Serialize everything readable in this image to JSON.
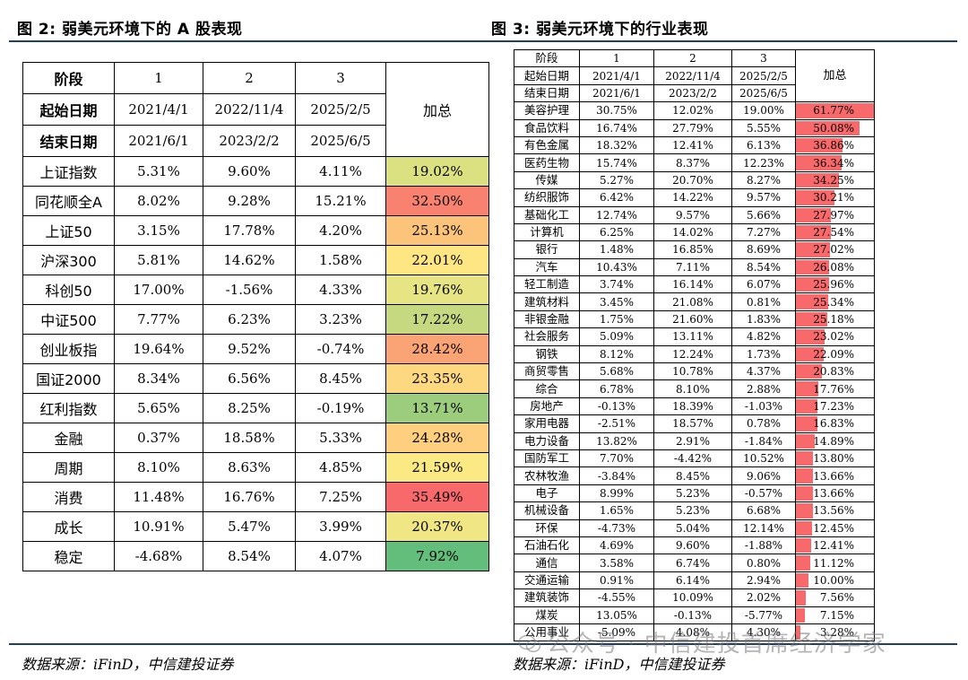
{
  "left": {
    "title": "图 2: 弱美元环境下的 A 股表现",
    "source": "数据来源：iFinD，中信建投证券",
    "header": {
      "stage_label": "阶段",
      "stages": [
        "1",
        "2",
        "3"
      ],
      "start_label": "起始日期",
      "starts": [
        "2021/4/1",
        "2022/11/4",
        "2025/2/5"
      ],
      "end_label": "结束日期",
      "ends": [
        "2021/6/1",
        "2023/2/2",
        "2025/6/5"
      ],
      "total_label": "加总"
    },
    "rows": [
      {
        "name": "上证指数",
        "v": [
          "5.31%",
          "9.60%",
          "4.11%"
        ],
        "total": "19.02%",
        "color": "#dbe081"
      },
      {
        "name": "同花顺全A",
        "v": [
          "8.02%",
          "9.28%",
          "15.21%"
        ],
        "total": "32.50%",
        "color": "#f8826f"
      },
      {
        "name": "上证50",
        "v": [
          "3.15%",
          "17.78%",
          "4.20%"
        ],
        "total": "25.13%",
        "color": "#fcc47b"
      },
      {
        "name": "沪深300",
        "v": [
          "5.81%",
          "14.62%",
          "1.58%"
        ],
        "total": "22.01%",
        "color": "#fee683"
      },
      {
        "name": "科创50",
        "v": [
          "17.00%",
          "-1.56%",
          "4.33%"
        ],
        "total": "19.76%",
        "color": "#e6e483"
      },
      {
        "name": "中证500",
        "v": [
          "7.77%",
          "6.23%",
          "3.23%"
        ],
        "total": "17.22%",
        "color": "#c6d980"
      },
      {
        "name": "创业板指",
        "v": [
          "19.64%",
          "9.52%",
          "-0.74%"
        ],
        "total": "28.42%",
        "color": "#faa375"
      },
      {
        "name": "国证2000",
        "v": [
          "8.34%",
          "6.56%",
          "8.45%"
        ],
        "total": "23.35%",
        "color": "#fdd880"
      },
      {
        "name": "红利指数",
        "v": [
          "5.65%",
          "8.25%",
          "-0.19%"
        ],
        "total": "13.71%",
        "color": "#9ccd7d"
      },
      {
        "name": "金融",
        "v": [
          "0.37%",
          "18.58%",
          "5.33%"
        ],
        "total": "24.28%",
        "color": "#fdcf7e"
      },
      {
        "name": "周期",
        "v": [
          "8.10%",
          "8.63%",
          "4.85%"
        ],
        "total": "21.59%",
        "color": "#fbe983"
      },
      {
        "name": "消费",
        "v": [
          "11.48%",
          "16.76%",
          "7.25%"
        ],
        "total": "35.49%",
        "color": "#f8696b"
      },
      {
        "name": "成长",
        "v": [
          "10.91%",
          "5.47%",
          "3.99%"
        ],
        "total": "20.37%",
        "color": "#f0e683"
      },
      {
        "name": "稳定",
        "v": [
          "-4.68%",
          "8.54%",
          "4.07%"
        ],
        "total": "7.92%",
        "color": "#63be7b"
      }
    ]
  },
  "right": {
    "title": "图 3: 弱美元环境下的行业表现",
    "source": "数据来源：iFinD，中信建投证券",
    "header": {
      "stage_label": "阶段",
      "stages": [
        "1",
        "2",
        "3"
      ],
      "start_label": "起始日期",
      "starts": [
        "2021/4/1",
        "2022/11/4",
        "2025/2/5"
      ],
      "end_label": "结束日期",
      "ends": [
        "2021/6/1",
        "2023/2/2",
        "2025/6/5"
      ],
      "total_label": "加总"
    },
    "bar_color": "#f8696b",
    "rows": [
      {
        "name": "美容护理",
        "v": [
          "30.75%",
          "12.02%",
          "19.00%"
        ],
        "total": "61.77%",
        "pct": 61.77
      },
      {
        "name": "食品饮料",
        "v": [
          "16.74%",
          "27.79%",
          "5.55%"
        ],
        "total": "50.08%",
        "pct": 50.08
      },
      {
        "name": "有色金属",
        "v": [
          "18.32%",
          "12.41%",
          "6.13%"
        ],
        "total": "36.86%",
        "pct": 36.86
      },
      {
        "name": "医药生物",
        "v": [
          "15.74%",
          "8.37%",
          "12.23%"
        ],
        "total": "36.34%",
        "pct": 36.34
      },
      {
        "name": "传媒",
        "v": [
          "5.27%",
          "20.70%",
          "8.27%"
        ],
        "total": "34.25%",
        "pct": 34.25
      },
      {
        "name": "纺织服饰",
        "v": [
          "6.42%",
          "14.22%",
          "9.57%"
        ],
        "total": "30.21%",
        "pct": 30.21
      },
      {
        "name": "基础化工",
        "v": [
          "12.74%",
          "9.57%",
          "5.66%"
        ],
        "total": "27.97%",
        "pct": 27.97
      },
      {
        "name": "计算机",
        "v": [
          "6.25%",
          "14.02%",
          "7.27%"
        ],
        "total": "27.54%",
        "pct": 27.54
      },
      {
        "name": "银行",
        "v": [
          "1.48%",
          "16.85%",
          "8.69%"
        ],
        "total": "27.02%",
        "pct": 27.02
      },
      {
        "name": "汽车",
        "v": [
          "10.43%",
          "7.11%",
          "8.54%"
        ],
        "total": "26.08%",
        "pct": 26.08
      },
      {
        "name": "轻工制造",
        "v": [
          "3.74%",
          "16.14%",
          "6.07%"
        ],
        "total": "25.96%",
        "pct": 25.96
      },
      {
        "name": "建筑材料",
        "v": [
          "3.45%",
          "21.08%",
          "0.81%"
        ],
        "total": "25.34%",
        "pct": 25.34
      },
      {
        "name": "非银金融",
        "v": [
          "1.75%",
          "21.60%",
          "1.83%"
        ],
        "total": "25.18%",
        "pct": 25.18
      },
      {
        "name": "社会服务",
        "v": [
          "5.09%",
          "13.11%",
          "4.82%"
        ],
        "total": "23.02%",
        "pct": 23.02
      },
      {
        "name": "钢铁",
        "v": [
          "8.12%",
          "12.24%",
          "1.73%"
        ],
        "total": "22.09%",
        "pct": 22.09
      },
      {
        "name": "商贸零售",
        "v": [
          "5.68%",
          "10.78%",
          "4.37%"
        ],
        "total": "20.83%",
        "pct": 20.83
      },
      {
        "name": "综合",
        "v": [
          "6.78%",
          "8.10%",
          "2.88%"
        ],
        "total": "17.76%",
        "pct": 17.76
      },
      {
        "name": "房地产",
        "v": [
          "-0.13%",
          "18.39%",
          "-1.03%"
        ],
        "total": "17.23%",
        "pct": 17.23
      },
      {
        "name": "家用电器",
        "v": [
          "-2.51%",
          "18.57%",
          "0.78%"
        ],
        "total": "16.83%",
        "pct": 16.83
      },
      {
        "name": "电力设备",
        "v": [
          "13.82%",
          "2.91%",
          "-1.84%"
        ],
        "total": "14.89%",
        "pct": 14.89
      },
      {
        "name": "国防军工",
        "v": [
          "7.70%",
          "-4.42%",
          "10.52%"
        ],
        "total": "13.80%",
        "pct": 13.8
      },
      {
        "name": "农林牧渔",
        "v": [
          "-3.84%",
          "8.45%",
          "9.06%"
        ],
        "total": "13.66%",
        "pct": 13.66
      },
      {
        "name": "电子",
        "v": [
          "8.99%",
          "5.23%",
          "-0.57%"
        ],
        "total": "13.66%",
        "pct": 13.66
      },
      {
        "name": "机械设备",
        "v": [
          "1.65%",
          "5.23%",
          "6.68%"
        ],
        "total": "13.56%",
        "pct": 13.56
      },
      {
        "name": "环保",
        "v": [
          "-4.73%",
          "5.04%",
          "12.14%"
        ],
        "total": "12.45%",
        "pct": 12.45
      },
      {
        "name": "石油石化",
        "v": [
          "4.69%",
          "9.60%",
          "-1.88%"
        ],
        "total": "12.41%",
        "pct": 12.41
      },
      {
        "name": "通信",
        "v": [
          "3.58%",
          "6.74%",
          "0.80%"
        ],
        "total": "11.12%",
        "pct": 11.12
      },
      {
        "name": "交通运输",
        "v": [
          "0.91%",
          "6.14%",
          "2.94%"
        ],
        "total": "10.00%",
        "pct": 10.0
      },
      {
        "name": "建筑装饰",
        "v": [
          "-4.55%",
          "10.09%",
          "2.02%"
        ],
        "total": "7.56%",
        "pct": 7.56
      },
      {
        "name": "煤炭",
        "v": [
          "13.05%",
          "-0.13%",
          "-5.77%"
        ],
        "total": "7.15%",
        "pct": 7.15
      },
      {
        "name": "公用事业",
        "v": [
          "-5.09%",
          "4.08%",
          "4.30%"
        ],
        "total": "3.28%",
        "pct": 3.28
      }
    ]
  },
  "watermark": "公众号 · 中信建投首席经济学家"
}
